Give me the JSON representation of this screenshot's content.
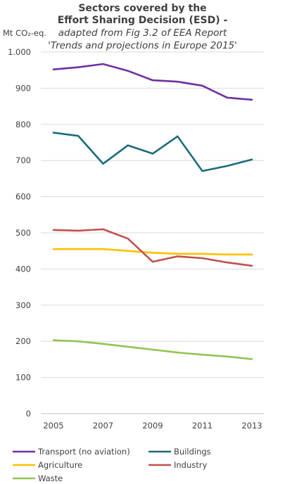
{
  "chart_data": {
    "type": "line",
    "title_line1": "Sectors covered by the",
    "title_line2": "Effort Sharing Decision (ESD) -",
    "subtitle_line1": "adapted from Fig 3.2 of EEA Report",
    "subtitle_line2": "'Trends and projections in Europe 2015'",
    "ylabel": "Mt CO₂-eq.",
    "ylim": [
      0,
      1000
    ],
    "yticks": [
      0,
      100,
      200,
      300,
      400,
      500,
      600,
      700,
      800,
      900,
      1000
    ],
    "ytick_labels": [
      "0",
      "100",
      "200",
      "300",
      "400",
      "500",
      "600",
      "700",
      "800",
      "900",
      "1.000"
    ],
    "x": [
      2005,
      2006,
      2007,
      2008,
      2009,
      2010,
      2011,
      2012,
      2013
    ],
    "xtick_labels": [
      "2005",
      "2007",
      "2009",
      "2011",
      "2013"
    ],
    "grid": true,
    "legend_position": "bottom",
    "series": [
      {
        "name": "Transport (no aviation)",
        "color": "#7030a0",
        "values": [
          952,
          958,
          967,
          948,
          922,
          918,
          907,
          874,
          868
        ]
      },
      {
        "name": "Buildings",
        "color": "#1b6c7a",
        "values": [
          777,
          768,
          691,
          742,
          719,
          767,
          671,
          685,
          703
        ]
      },
      {
        "name": "Agriculture",
        "color": "#ffc000",
        "values": [
          455,
          455,
          455,
          450,
          445,
          442,
          442,
          440,
          440
        ]
      },
      {
        "name": "Industry",
        "color": "#c0504d",
        "values": [
          508,
          506,
          510,
          484,
          420,
          435,
          430,
          418,
          409
        ]
      },
      {
        "name": "Waste",
        "color": "#92c353",
        "values": [
          203,
          200,
          193,
          185,
          177,
          169,
          163,
          158,
          151
        ]
      }
    ]
  }
}
